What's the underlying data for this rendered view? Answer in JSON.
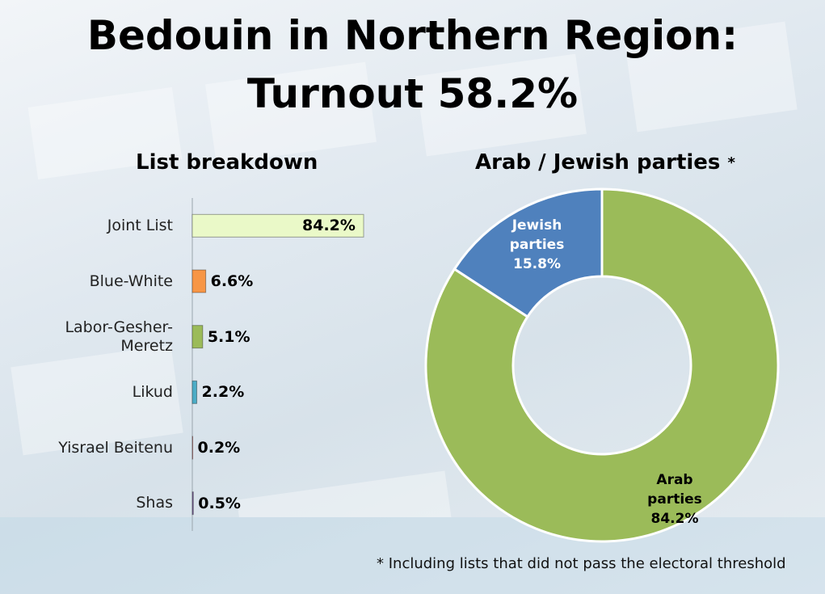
{
  "title_lines": [
    "Bedouin in Northern Region:",
    "Turnout 58.2%"
  ],
  "footnote": "* Including lists that did not pass the electoral threshold",
  "chart_data": [
    {
      "type": "bar",
      "orientation": "horizontal",
      "title": "List breakdown",
      "categories": [
        "Joint List",
        "Blue-White",
        "Labor-Gesher-Meretz",
        "Likud",
        "Yisrael Beitenu",
        "Shas"
      ],
      "values": [
        84.2,
        6.6,
        5.1,
        2.2,
        0.2,
        0.5
      ],
      "value_labels": [
        "84.2%",
        "6.6%",
        "5.1%",
        "2.2%",
        "0.2%",
        "0.5%"
      ],
      "colors": [
        "#eaf9c8",
        "#f79646",
        "#9bbb59",
        "#4bacc6",
        "#c0504d",
        "#8064a2"
      ]
    },
    {
      "type": "donut",
      "title": "Arab / Jewish parties",
      "title_note": "*",
      "categories": [
        "Arab parties",
        "Jewish parties"
      ],
      "values": [
        84.2,
        15.8
      ],
      "value_labels": [
        "84.2%",
        "15.8%"
      ],
      "colors": [
        "#9bbb59",
        "#4f81bd"
      ]
    }
  ]
}
